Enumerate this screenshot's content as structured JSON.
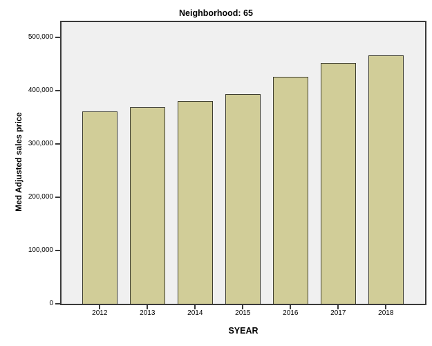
{
  "chart_data": {
    "type": "bar",
    "title": "Neighborhood: 65",
    "xlabel": "SYEAR",
    "ylabel": "Med Adjusted sales price",
    "categories": [
      "2012",
      "2013",
      "2014",
      "2015",
      "2016",
      "2017",
      "2018"
    ],
    "values": [
      360000,
      368000,
      380000,
      393000,
      426000,
      452000,
      466000
    ],
    "ylim": [
      0,
      528000
    ],
    "y_ticks": [
      0,
      100000,
      200000,
      300000,
      400000,
      500000
    ],
    "y_tick_labels": [
      "0",
      "100,000",
      "200,000",
      "300,000",
      "400,000",
      "500,000"
    ],
    "grid": false,
    "legend": false,
    "colors": {
      "bar_fill": "#d1cd98",
      "bar_border": "#3e3e30",
      "plot_bg": "#f0f0f0",
      "axis": "#3a3a3a",
      "text": "#000000"
    }
  }
}
